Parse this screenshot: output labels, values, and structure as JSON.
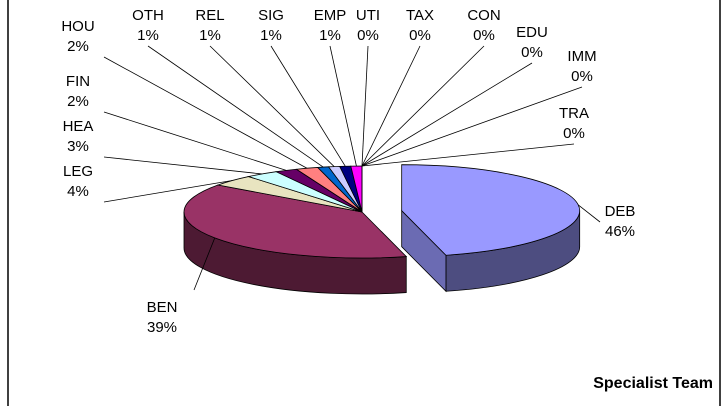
{
  "chart_data": {
    "type": "pie3d",
    "title": "Specialist Team",
    "categories": [
      "DEB",
      "BEN",
      "LEG",
      "HEA",
      "FIN",
      "HOU",
      "OTH",
      "REL",
      "SIG",
      "EMP",
      "UTI",
      "TAX",
      "CON",
      "EDU",
      "IMM",
      "TRA"
    ],
    "values": [
      46,
      39,
      4,
      3,
      2,
      2,
      1,
      1,
      1,
      1,
      0,
      0,
      0,
      0,
      0,
      0
    ],
    "value_labels": [
      "46%",
      "39%",
      "4%",
      "3%",
      "2%",
      "2%",
      "1%",
      "1%",
      "1%",
      "1%",
      "0%",
      "0%",
      "0%",
      "0%",
      "0%",
      "0%"
    ],
    "colors": [
      "#9999ff",
      "#993366",
      "#e8e4c0",
      "#ccffff",
      "#660066",
      "#ff8080",
      "#0066cc",
      "#ccccff",
      "#000080",
      "#ff00ff",
      "#ffff00",
      "#00ffff",
      "#800080",
      "#800000",
      "#008080",
      "#0000ff"
    ],
    "exploded": [
      0
    ]
  }
}
